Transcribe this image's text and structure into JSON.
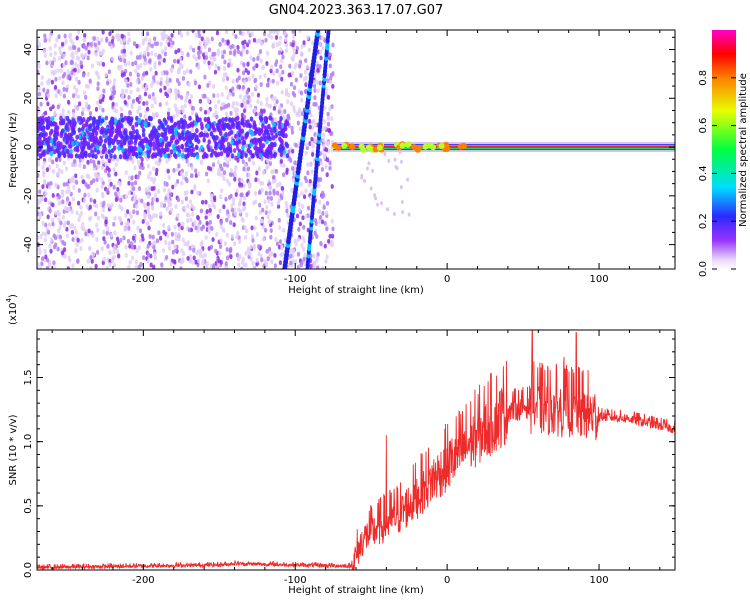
{
  "title": "GN04.2023.363.17.07.G07",
  "chart_data": [
    {
      "type": "heatmap",
      "xlabel": "Height of straight line (km)",
      "ylabel": "Frequency (Hz)",
      "xlim": [
        -270,
        150
      ],
      "ylim": [
        -50,
        48
      ],
      "xticks": [
        -200,
        -100,
        0,
        100
      ],
      "yticks": [
        -40,
        -20,
        0,
        20,
        40
      ],
      "colorbar": {
        "label": "Normalized spectral amplitude",
        "range": [
          0,
          1
        ],
        "ticks": [
          0.0,
          0.2,
          0.4,
          0.6,
          0.8
        ]
      },
      "features": [
        {
          "name": "noise region",
          "x_range": [
            -270,
            -75
          ],
          "description_hidden": true
        },
        {
          "name": "diagonal trace",
          "x": [
            -107,
            -85
          ],
          "y": [
            -50,
            48
          ]
        },
        {
          "name": "diagonal trace 2",
          "x": [
            -92,
            -78
          ],
          "y": [
            -50,
            48
          ]
        },
        {
          "name": "carrier line",
          "x_range": [
            -75,
            150
          ],
          "y": 0
        }
      ]
    },
    {
      "type": "line",
      "xlabel": "Height of straight line (km)",
      "ylabel": "SNR (10 * v/v)",
      "multiplier": "(x10",
      "multiplier_exp": "4",
      "multiplier_close": ")",
      "xlim": [
        -270,
        150
      ],
      "ylim": [
        0,
        1.87
      ],
      "xticks": [
        -200,
        -100,
        0,
        100
      ],
      "yticks": [
        "0.0",
        "0.5",
        "1.0",
        "1.5"
      ],
      "series_color": "#ee2a2a",
      "envelope": {
        "x": [
          -270,
          -150,
          -140,
          -63,
          -55,
          -30,
          -10,
          20,
          40,
          55,
          70,
          85,
          100,
          120,
          150
        ],
        "y": [
          0.02,
          0.04,
          0.05,
          0.03,
          0.25,
          0.45,
          0.7,
          1.05,
          1.25,
          1.28,
          1.26,
          1.24,
          1.2,
          1.18,
          1.1
        ]
      },
      "peaks": [
        {
          "x": 56,
          "y": 1.87
        },
        {
          "x": 85,
          "y": 1.85
        },
        {
          "x": 77,
          "y": 1.66
        },
        {
          "x": -40,
          "y": 1.05
        }
      ]
    }
  ]
}
